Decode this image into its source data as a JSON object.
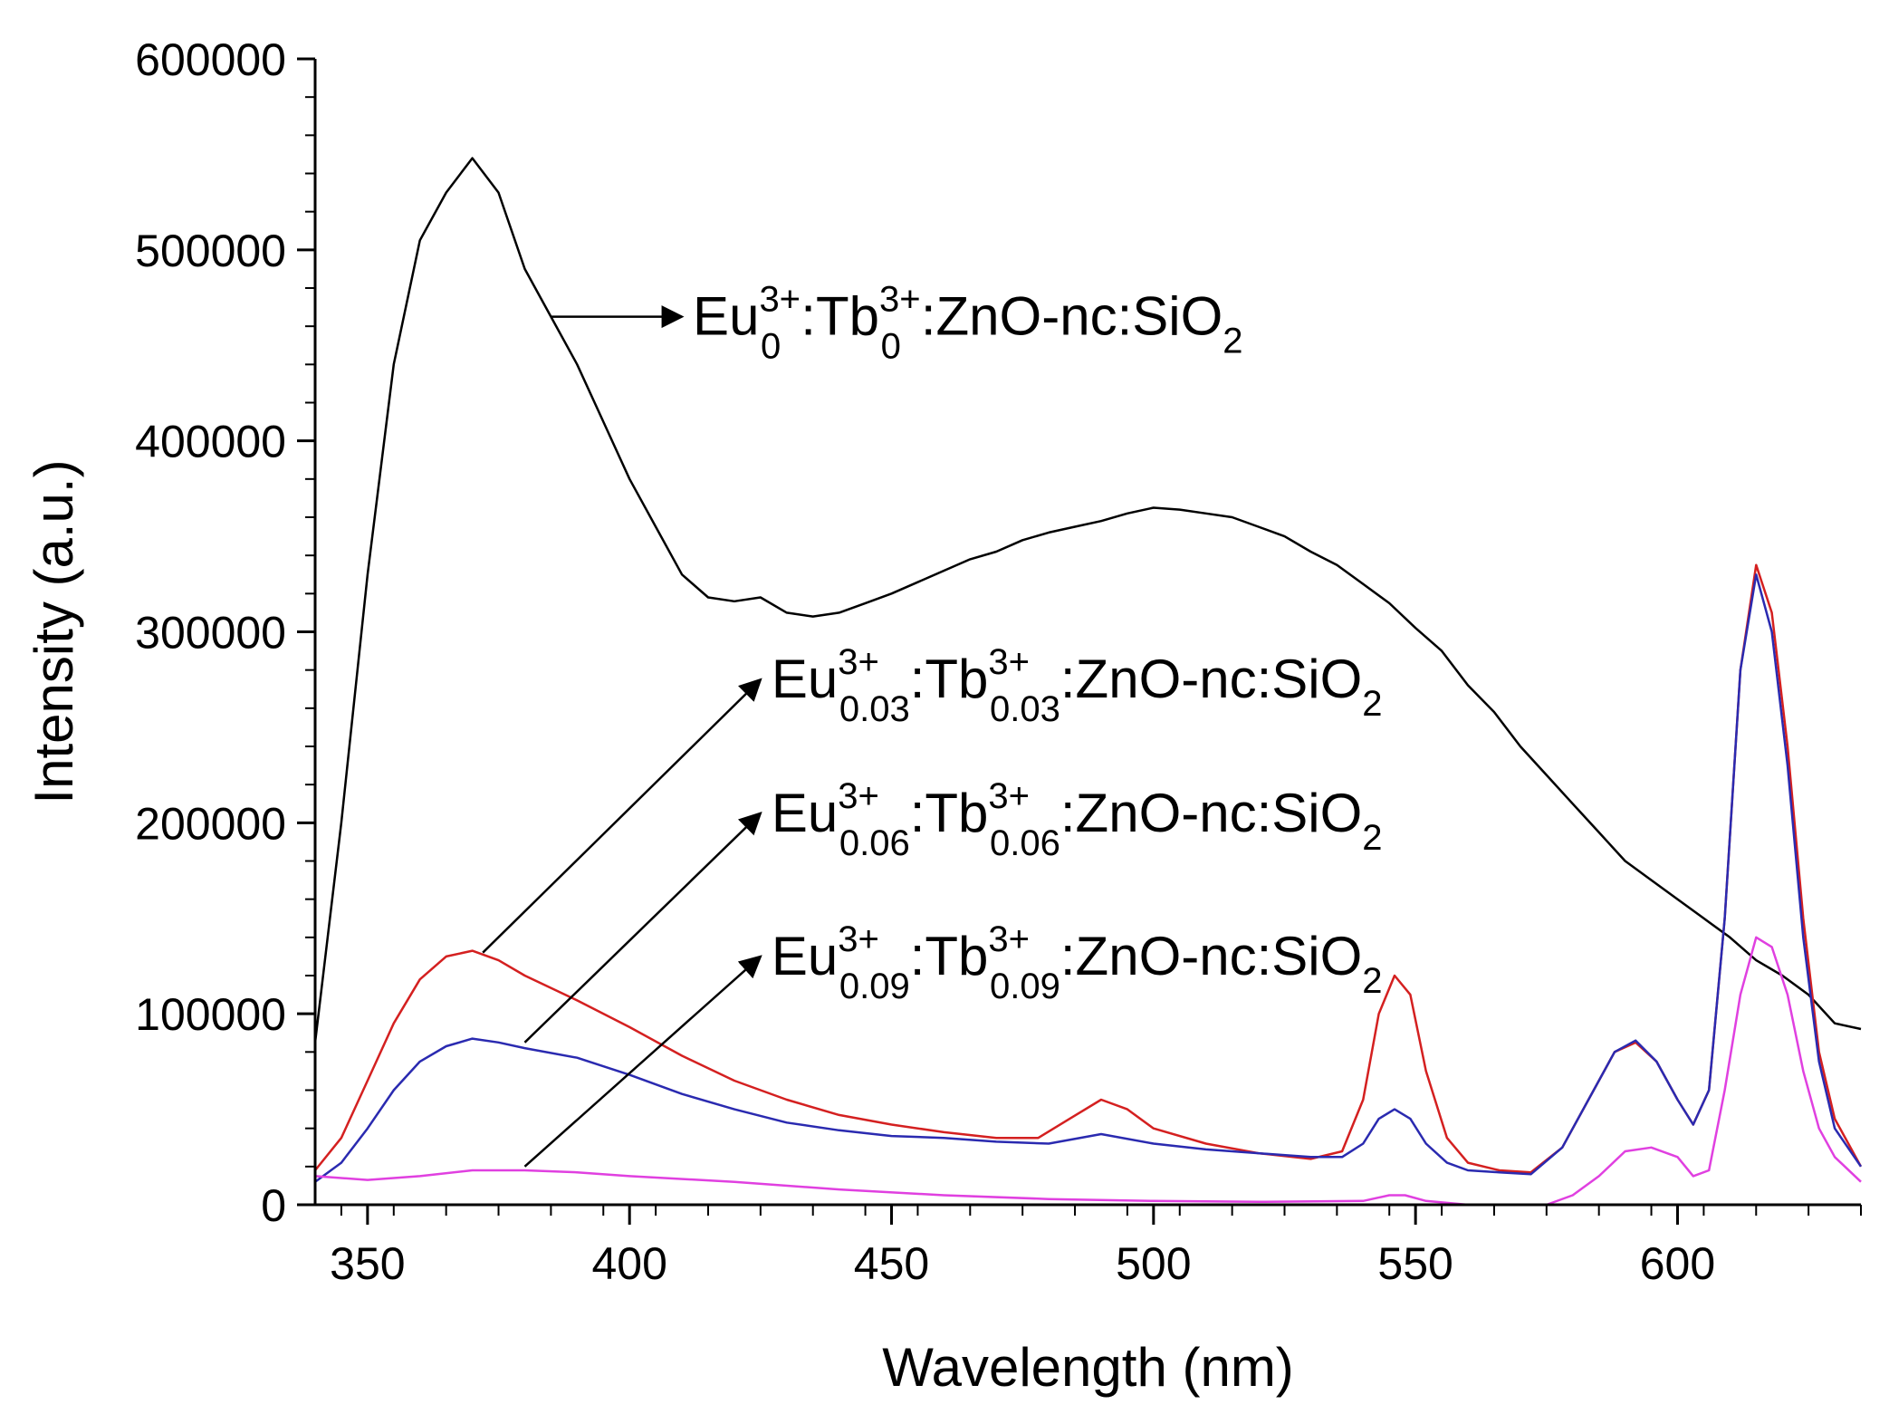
{
  "chart_data": {
    "type": "line",
    "xlabel": "Wavelength (nm)",
    "ylabel": "Intensity (a.u.)",
    "xlim": [
      340,
      635
    ],
    "ylim": [
      0,
      600000
    ],
    "x_ticks": [
      350,
      400,
      450,
      500,
      550,
      600
    ],
    "x_tick_labels": [
      "350",
      "400",
      "450",
      "500",
      "550",
      "600"
    ],
    "y_ticks": [
      0,
      100000,
      200000,
      300000,
      400000,
      500000,
      600000
    ],
    "y_tick_labels": [
      "0",
      "100000",
      "200000",
      "300000",
      "400000",
      "500000",
      "600000"
    ],
    "series": [
      {
        "name": "Eu0:Tb0:ZnO-nc:SiO2",
        "color": "#000000",
        "x": [
          340,
          345,
          350,
          355,
          360,
          365,
          370,
          375,
          380,
          385,
          390,
          395,
          400,
          405,
          410,
          415,
          420,
          425,
          430,
          435,
          440,
          445,
          450,
          455,
          460,
          465,
          470,
          475,
          480,
          485,
          490,
          495,
          500,
          505,
          510,
          515,
          520,
          525,
          530,
          535,
          540,
          545,
          550,
          555,
          560,
          565,
          570,
          575,
          580,
          585,
          590,
          595,
          600,
          605,
          610,
          615,
          620,
          625,
          630,
          635
        ],
        "y": [
          85000,
          200000,
          330000,
          440000,
          505000,
          530000,
          548000,
          530000,
          490000,
          465000,
          440000,
          410000,
          380000,
          355000,
          330000,
          318000,
          316000,
          318000,
          310000,
          308000,
          310000,
          315000,
          320000,
          326000,
          332000,
          338000,
          342000,
          348000,
          352000,
          355000,
          358000,
          362000,
          365000,
          364000,
          362000,
          360000,
          355000,
          350000,
          342000,
          335000,
          325000,
          315000,
          302000,
          290000,
          272000,
          258000,
          240000,
          225000,
          210000,
          195000,
          180000,
          170000,
          160000,
          150000,
          140000,
          128000,
          120000,
          110000,
          95000,
          92000
        ]
      },
      {
        "name": "Eu0.03:Tb0.03:ZnO-nc:SiO2",
        "color": "#d42020",
        "x": [
          340,
          345,
          350,
          355,
          360,
          365,
          370,
          375,
          380,
          390,
          400,
          410,
          420,
          430,
          440,
          450,
          460,
          470,
          478,
          484,
          490,
          495,
          500,
          510,
          520,
          530,
          536,
          540,
          543,
          546,
          549,
          552,
          556,
          560,
          566,
          572,
          578,
          584,
          588,
          592,
          596,
          600,
          603,
          606,
          609,
          612,
          615,
          618,
          621,
          624,
          627,
          630,
          635
        ],
        "y": [
          18000,
          35000,
          65000,
          95000,
          118000,
          130000,
          133000,
          128000,
          120000,
          107000,
          93000,
          78000,
          65000,
          55000,
          47000,
          42000,
          38000,
          35000,
          35000,
          45000,
          55000,
          50000,
          40000,
          32000,
          27000,
          24000,
          28000,
          55000,
          100000,
          120000,
          110000,
          70000,
          35000,
          22000,
          18000,
          17000,
          30000,
          60000,
          80000,
          85000,
          75000,
          55000,
          42000,
          60000,
          150000,
          280000,
          335000,
          310000,
          240000,
          150000,
          80000,
          45000,
          20000
        ]
      },
      {
        "name": "Eu0.06:Tb0.06:ZnO-nc:SiO2",
        "color": "#2a2ab0",
        "x": [
          340,
          345,
          350,
          355,
          360,
          365,
          370,
          375,
          380,
          390,
          400,
          410,
          420,
          430,
          440,
          450,
          460,
          470,
          480,
          490,
          500,
          510,
          520,
          530,
          536,
          540,
          543,
          546,
          549,
          552,
          556,
          560,
          566,
          572,
          578,
          584,
          588,
          592,
          596,
          600,
          603,
          606,
          609,
          612,
          615,
          618,
          621,
          624,
          627,
          630,
          635
        ],
        "y": [
          12000,
          22000,
          40000,
          60000,
          75000,
          83000,
          87000,
          85000,
          82000,
          77000,
          68000,
          58000,
          50000,
          43000,
          39000,
          36000,
          35000,
          33000,
          32000,
          37000,
          32000,
          29000,
          27000,
          25000,
          25000,
          32000,
          45000,
          50000,
          45000,
          32000,
          22000,
          18000,
          17000,
          16000,
          30000,
          60000,
          80000,
          86000,
          75000,
          55000,
          42000,
          60000,
          150000,
          280000,
          330000,
          300000,
          230000,
          140000,
          75000,
          40000,
          20000
        ]
      },
      {
        "name": "Eu0.09:Tb0.09:ZnO-nc:SiO2",
        "color": "#e040e0",
        "x": [
          340,
          350,
          360,
          370,
          380,
          390,
          400,
          420,
          440,
          460,
          480,
          500,
          520,
          540,
          545,
          548,
          552,
          560,
          570,
          575,
          580,
          585,
          590,
          595,
          600,
          603,
          606,
          609,
          612,
          615,
          618,
          621,
          624,
          627,
          630,
          635
        ],
        "y": [
          15000,
          13000,
          15000,
          18000,
          18000,
          17000,
          15000,
          12000,
          8000,
          5000,
          3000,
          2000,
          1500,
          2000,
          5000,
          5000,
          2000,
          0,
          0,
          0,
          5000,
          15000,
          28000,
          30000,
          25000,
          15000,
          18000,
          60000,
          110000,
          140000,
          135000,
          110000,
          70000,
          40000,
          25000,
          12000
        ]
      }
    ],
    "annotations": [
      {
        "base": "Eu",
        "sup1": "3+",
        "sub1": "0",
        "mid": ":Tb",
        "sup2": "3+",
        "sub2": "0",
        "tail": ":ZnO-nc:SiO",
        "tail_sub": "2",
        "from": [
          385,
          465000
        ],
        "to": [
          410,
          465000
        ]
      },
      {
        "base": "Eu",
        "sup1": "3+",
        "sub1": "0.03",
        "mid": ":Tb",
        "sup2": "3+",
        "sub2": "0.03",
        "tail": ":ZnO-nc:SiO",
        "tail_sub": "2",
        "from": [
          372,
          132000
        ],
        "to": [
          425,
          275000
        ]
      },
      {
        "base": "Eu",
        "sup1": "3+",
        "sub1": "0.06",
        "mid": ":Tb",
        "sup2": "3+",
        "sub2": "0.06",
        "tail": ":ZnO-nc:SiO",
        "tail_sub": "2",
        "from": [
          380,
          85000
        ],
        "to": [
          425,
          205000
        ]
      },
      {
        "base": "Eu",
        "sup1": "3+",
        "sub1": "0.09",
        "mid": ":Tb",
        "sup2": "3+",
        "sub2": "0.09",
        "tail": ":ZnO-nc:SiO",
        "tail_sub": "2",
        "from": [
          380,
          20000
        ],
        "to": [
          425,
          130000
        ]
      }
    ]
  }
}
